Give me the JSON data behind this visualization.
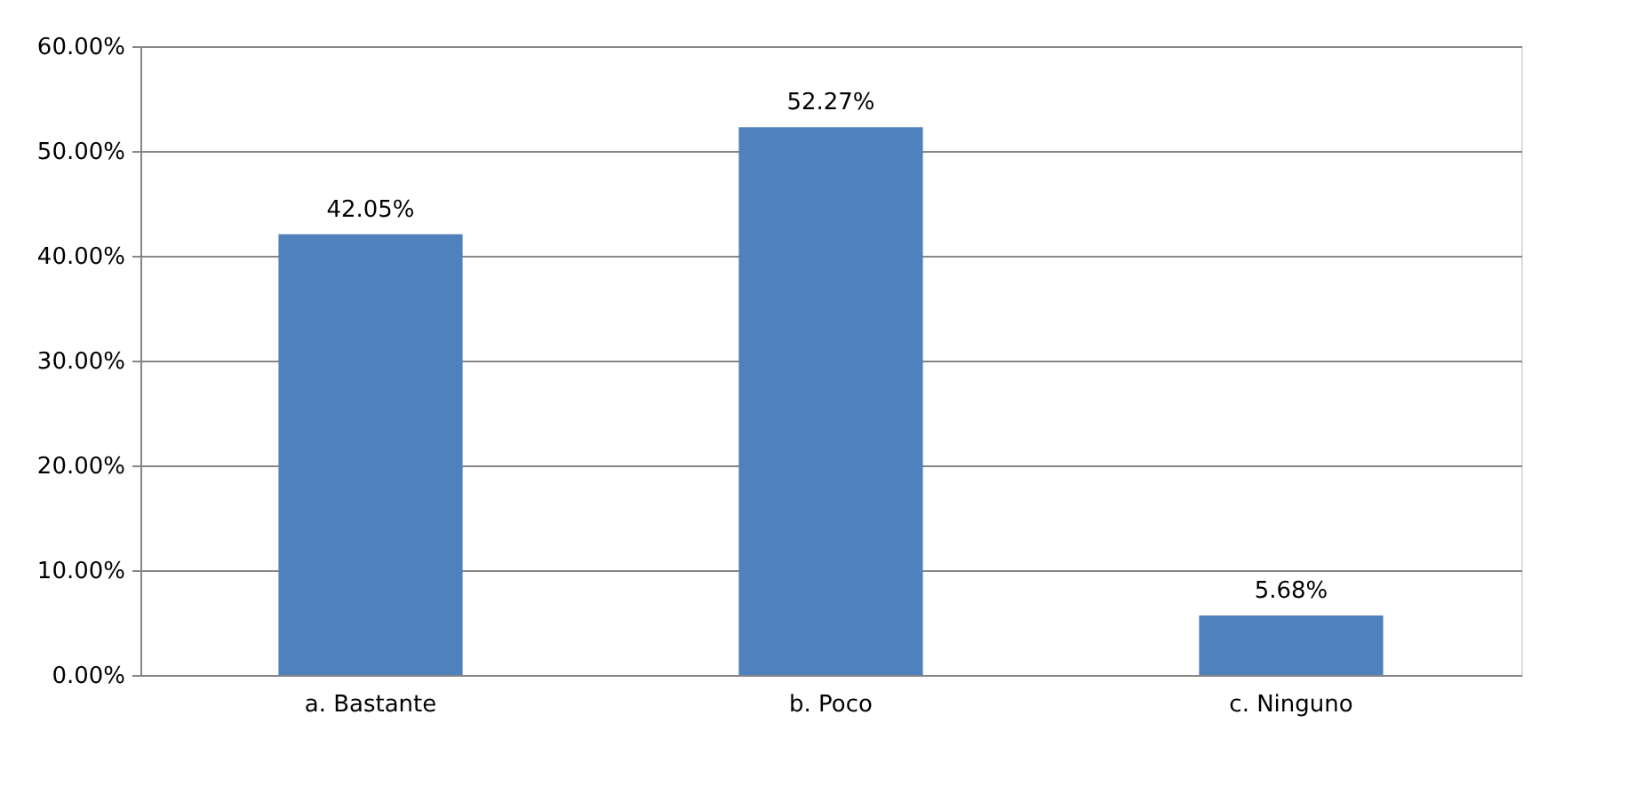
{
  "chart_data": {
    "type": "bar",
    "categories": [
      "a. Bastante",
      "b. Poco",
      "c. Ninguno"
    ],
    "values": [
      42.05,
      52.27,
      5.68
    ],
    "value_labels": [
      "42.05%",
      "52.27%",
      "5.68%"
    ],
    "color": "#4f81bd",
    "ylim": [
      0,
      60
    ],
    "yticks": [
      {
        "value": 0,
        "label": "0.00%"
      },
      {
        "value": 10,
        "label": "10.00%"
      },
      {
        "value": 20,
        "label": "20.00%"
      },
      {
        "value": 30,
        "label": "30.00%"
      },
      {
        "value": 40,
        "label": "40.00%"
      },
      {
        "value": 50,
        "label": "50.00%"
      },
      {
        "value": 60,
        "label": "60.00%"
      }
    ],
    "grid": "y"
  }
}
